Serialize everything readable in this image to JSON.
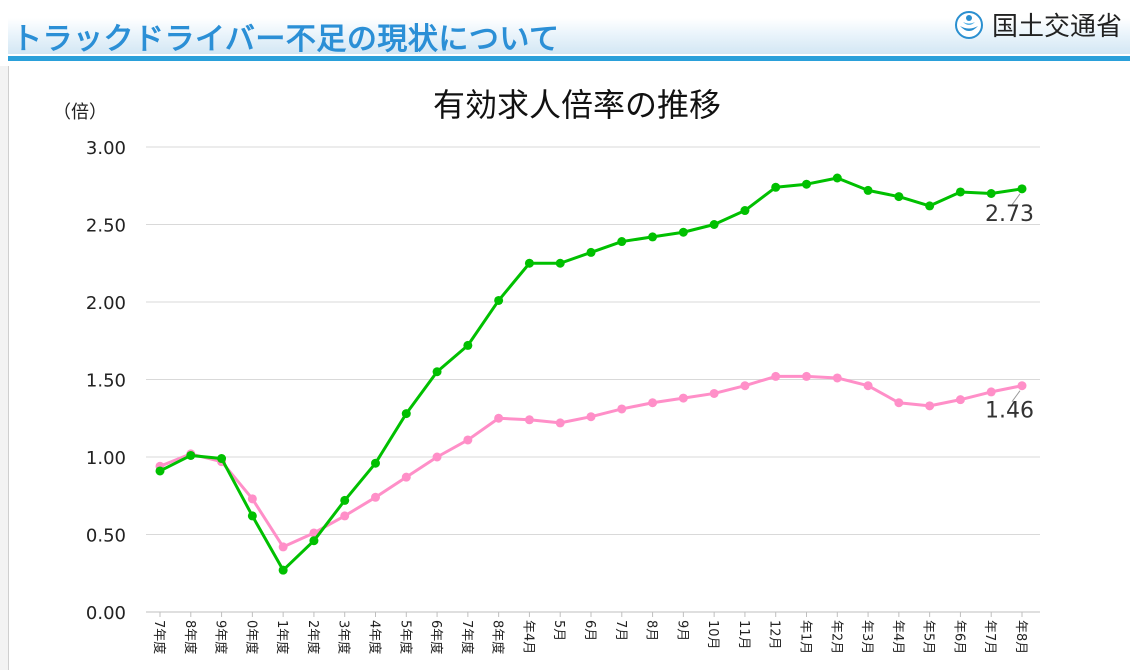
{
  "header": {
    "title": "トラックドライバー不足の現状について",
    "org": "国土交通省"
  },
  "colors": {
    "series_green": "#00c000",
    "series_pink": "#ff8fc8",
    "title_blue": "#2b8fd6",
    "rule_blue": "#2aa0da",
    "grid": "#d9d9d9"
  },
  "chart_data": {
    "type": "line",
    "title": "有効求人倍率の推移",
    "ylabel": "（倍）",
    "xlabel": "",
    "ylim": [
      0,
      3.0
    ],
    "yticks": [
      "0.00",
      "0.50",
      "1.00",
      "1.50",
      "2.00",
      "2.50",
      "3.00"
    ],
    "grid": true,
    "categories": [
      "7年度",
      "8年度",
      "9年度",
      "0年度",
      "1年度",
      "2年度",
      "3年度",
      "4年度",
      "5年度",
      "6年度",
      "7年度",
      "8年度",
      "年4月",
      "5月",
      "6月",
      "7月",
      "8月",
      "9月",
      "10月",
      "11月",
      "12月",
      "年1月",
      "年2月",
      "年3月",
      "年4月",
      "年5月",
      "年6月",
      "年7月",
      "年8月"
    ],
    "series": [
      {
        "color": "#00c000",
        "values": [
          0.91,
          1.01,
          0.99,
          0.62,
          0.27,
          0.46,
          0.72,
          0.96,
          1.28,
          1.55,
          1.72,
          2.01,
          2.25,
          2.25,
          2.32,
          2.39,
          2.42,
          2.45,
          2.5,
          2.59,
          2.74,
          2.76,
          2.8,
          2.72,
          2.68,
          2.62,
          2.71,
          2.7,
          2.73
        ],
        "end_label": "2.73"
      },
      {
        "color": "#ff8fc8",
        "values": [
          0.94,
          1.02,
          0.97,
          0.73,
          0.42,
          0.51,
          0.62,
          0.74,
          0.87,
          1.0,
          1.11,
          1.25,
          1.24,
          1.22,
          1.26,
          1.31,
          1.35,
          1.38,
          1.41,
          1.46,
          1.52,
          1.52,
          1.51,
          1.46,
          1.35,
          1.33,
          1.37,
          1.42,
          1.46
        ],
        "end_label": "1.46"
      }
    ]
  }
}
